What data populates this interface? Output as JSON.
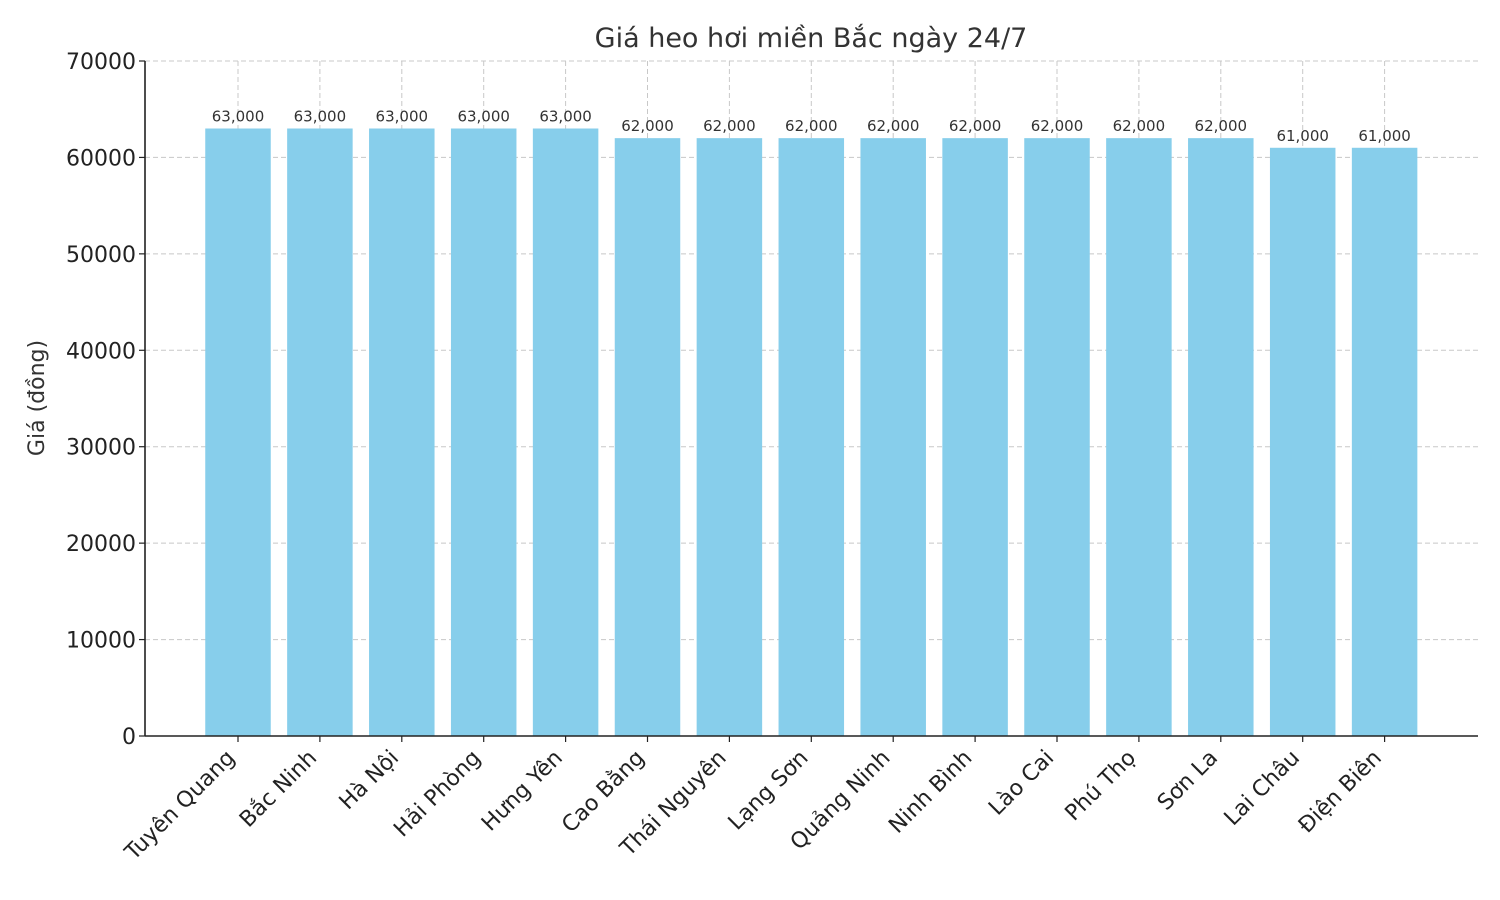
{
  "chart_data": {
    "type": "bar",
    "title": "Giá heo hơi miền Bắc ngày 24/7",
    "xlabel": "",
    "ylabel": "Giá (đồng)",
    "ylim": [
      0,
      70000
    ],
    "yticks": [
      0,
      10000,
      20000,
      30000,
      40000,
      50000,
      60000,
      70000
    ],
    "grid": true,
    "bar_color": "#87CEEB",
    "categories": [
      "Tuyên Quang",
      "Bắc Ninh",
      "Hà Nội",
      "Hải Phòng",
      "Hưng Yên",
      "Cao Bằng",
      "Thái Nguyên",
      "Lạng Sơn",
      "Quảng Ninh",
      "Ninh Bình",
      "Lào Cai",
      "Phú Thọ",
      "Sơn La",
      "Lai Châu",
      "Điện Biên"
    ],
    "values": [
      63000,
      63000,
      63000,
      63000,
      63000,
      62000,
      62000,
      62000,
      62000,
      62000,
      62000,
      62000,
      62000,
      61000,
      61000
    ],
    "data_labels": [
      "63,000",
      "63,000",
      "63,000",
      "63,000",
      "63,000",
      "62,000",
      "62,000",
      "62,000",
      "62,000",
      "62,000",
      "62,000",
      "62,000",
      "62,000",
      "61,000",
      "61,000"
    ]
  }
}
